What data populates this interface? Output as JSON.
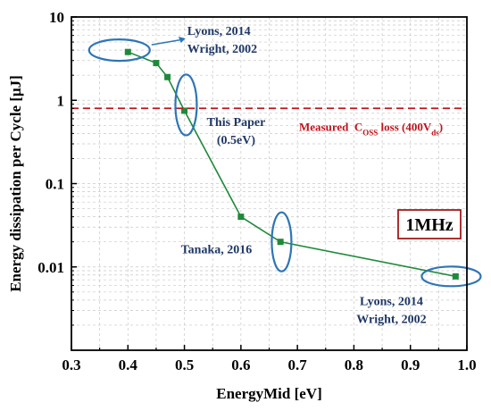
{
  "chart_data": {
    "type": "line",
    "xlabel": "EnergyMid [eV]",
    "ylabel": "Energy dissipation per Cycle [μJ]",
    "xlim": [
      0.3,
      1.0
    ],
    "ylim": [
      0.001,
      10
    ],
    "y_scale": "log",
    "grid": true,
    "x_ticks": [
      "0.3",
      "0.4",
      "0.5",
      "0.6",
      "0.7",
      "0.8",
      "0.9",
      "1.0"
    ],
    "y_ticks": [
      "10",
      "1",
      "0.1",
      "0.01"
    ],
    "y_tick_values": [
      10,
      1,
      0.1,
      0.01
    ],
    "series": [
      {
        "color": "#1f8a3a",
        "marker_color": "#1f8a3a",
        "x": [
          0.4,
          0.45,
          0.47,
          0.5,
          0.6,
          0.67,
          0.98
        ],
        "y": [
          3.8,
          2.8,
          1.9,
          0.75,
          0.04,
          0.02,
          0.0077
        ]
      }
    ],
    "reference_line": {
      "y": 0.8,
      "color": "#c0141c",
      "label_prefix": "Measured  C",
      "label_sub": "OSS",
      "label_mid": " loss (400V",
      "label_sub2": "ds",
      "label_suffix": ")"
    },
    "frequency_label": "1MHz",
    "annotations": [
      {
        "lines": [
          "Lyons, 2014",
          "Wright, 2002"
        ],
        "x": 0.385,
        "y": 4.0
      },
      {
        "lines": [
          "This Paper",
          "(0.5eV)"
        ],
        "x": 0.503,
        "y": 0.88
      },
      {
        "lines": [
          "Tanaka, 2016"
        ],
        "x": 0.672,
        "y": 0.02
      },
      {
        "lines": [
          "Lyons, 2014",
          "Wright, 2002"
        ],
        "x": 0.977,
        "y": 0.0077
      }
    ],
    "colors": {
      "annotation_text": "#1f3864",
      "ellipse": "#2e75b6",
      "frequency_box": "#a31a1a"
    }
  }
}
